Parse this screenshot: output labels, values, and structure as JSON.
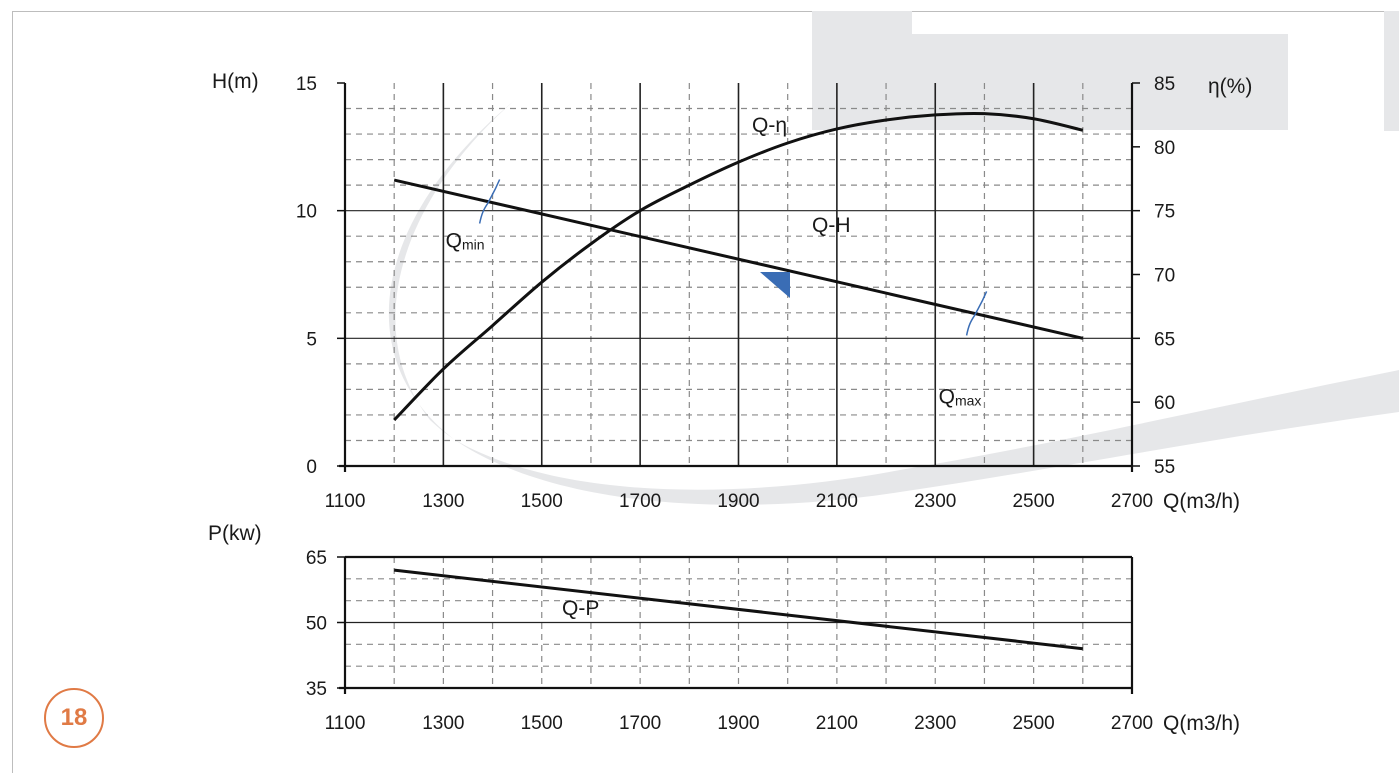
{
  "page_number": "18",
  "colors": {
    "curve": "#111111",
    "grid_dash": "#8a8a8a",
    "watermark": "#e6e7e9",
    "accent": "#3a6db5",
    "badge": "#e07a45"
  },
  "chart_data": [
    {
      "type": "line",
      "xlabel": "Q(m3/h)",
      "ylabel_left": "H(m)",
      "ylabel_right": "η(%)",
      "xlim": [
        1100,
        2700
      ],
      "x_ticks": [
        1100,
        1300,
        1500,
        1700,
        1900,
        2100,
        2300,
        2500,
        2700
      ],
      "ylim_left": [
        0,
        15
      ],
      "y_ticks_left": [
        0,
        5,
        10,
        15
      ],
      "ylim_right": [
        55,
        85
      ],
      "y_ticks_right": [
        55,
        60,
        65,
        70,
        75,
        80,
        85
      ],
      "grid": true,
      "series": [
        {
          "name": "Q-H",
          "axis": "left",
          "x": [
            1200,
            2600
          ],
          "y": [
            11.2,
            5.0
          ]
        },
        {
          "name": "Q-η",
          "axis": "right",
          "x": [
            1200,
            1300,
            1400,
            1500,
            1600,
            1700,
            1800,
            1900,
            2000,
            2100,
            2200,
            2300,
            2400,
            2500,
            2600
          ],
          "y": [
            58.6,
            62.6,
            66.0,
            69.4,
            72.4,
            75.0,
            77.0,
            78.8,
            80.3,
            81.4,
            82.1,
            82.5,
            82.6,
            82.2,
            81.3
          ]
        }
      ],
      "annotations": [
        {
          "label": "Q",
          "sub": "min",
          "x": 1390
        },
        {
          "label": "Q",
          "sub": "max",
          "x": 2380
        }
      ]
    },
    {
      "type": "line",
      "xlabel": "Q(m3/h)",
      "ylabel": "P(kw)",
      "xlim": [
        1100,
        2700
      ],
      "x_ticks": [
        1100,
        1300,
        1500,
        1700,
        1900,
        2100,
        2300,
        2500,
        2700
      ],
      "ylim": [
        35,
        65
      ],
      "y_ticks": [
        35,
        50,
        65
      ],
      "grid": true,
      "series": [
        {
          "name": "Q-P",
          "x": [
            1200,
            2600
          ],
          "y": [
            62,
            44
          ]
        }
      ]
    }
  ]
}
